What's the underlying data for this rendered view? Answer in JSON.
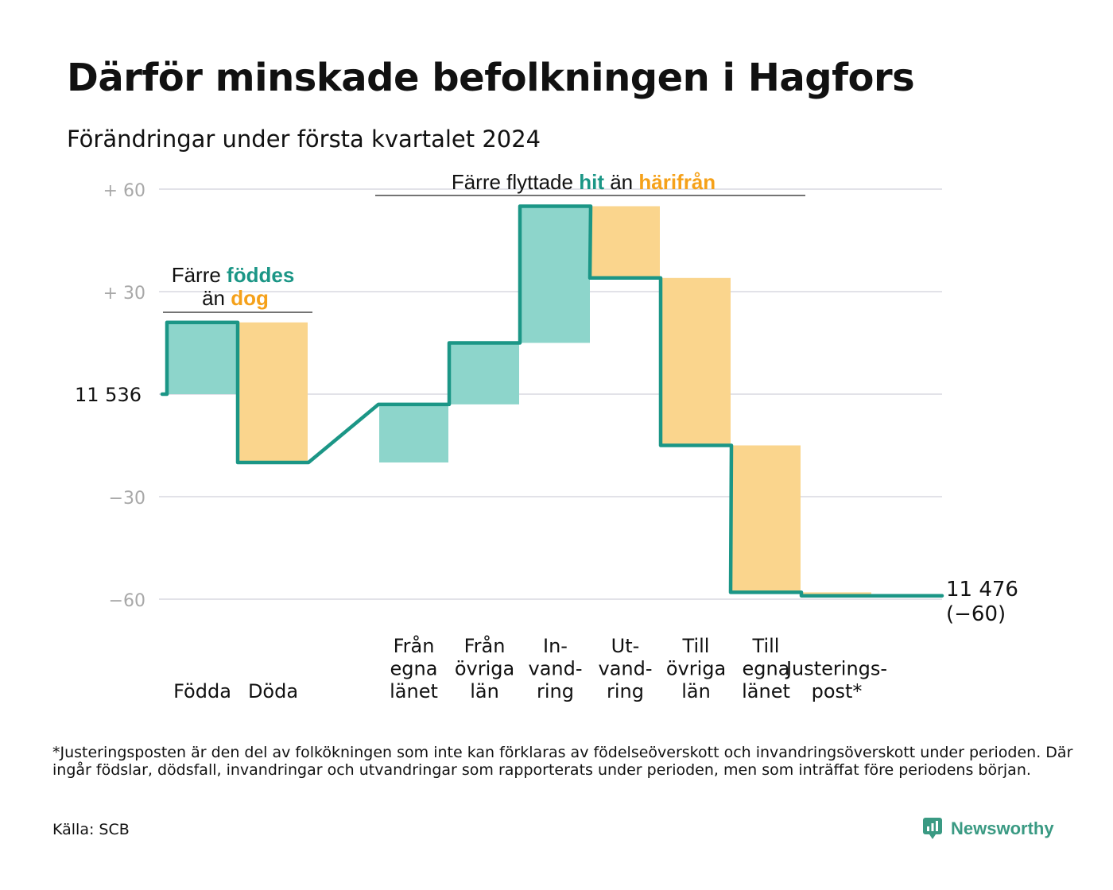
{
  "title": "Därför minskade befolkningen i Hagfors",
  "subtitle": "Förändringar under första kvartalet 2024",
  "colors": {
    "increase_fill": "#8dd5cb",
    "decrease_fill": "#fad58d",
    "line": "#1b9686",
    "teal_text": "#1b9686",
    "orange_text": "#f5a11a",
    "grid": "#e2e2e8",
    "tick_text": "#a8a8a8"
  },
  "chart_data": {
    "type": "bar",
    "subtype": "waterfall",
    "start_value": 11536,
    "end_value": 11476,
    "net_change": -60,
    "start_label": "11 536",
    "end_label": "11 476",
    "end_change_label": "(−60)",
    "ylim": [
      -60,
      60
    ],
    "yticks": [
      {
        "value": 60,
        "label": "+ 60"
      },
      {
        "value": 30,
        "label": "+ 30"
      },
      {
        "value": 0,
        "label": "11 536"
      },
      {
        "value": -30,
        "label": "−30"
      },
      {
        "value": -60,
        "label": "−60"
      }
    ],
    "grid": true,
    "categories": [
      {
        "label": [
          "Födda"
        ],
        "change": 21
      },
      {
        "label": [
          "Döda"
        ],
        "change": -41
      },
      {
        "label": [
          "Från",
          "egna",
          "länet"
        ],
        "change": 17
      },
      {
        "label": [
          "Från",
          "övriga",
          "län"
        ],
        "change": 18
      },
      {
        "label": [
          "In-",
          "vand-",
          "ring"
        ],
        "change": 40
      },
      {
        "label": [
          "Ut-",
          "vand-",
          "ring"
        ],
        "change": -21
      },
      {
        "label": [
          "Till",
          "övriga",
          "län"
        ],
        "change": -49
      },
      {
        "label": [
          "Till",
          "egna",
          "länet"
        ],
        "change": -43
      },
      {
        "label": [
          "Justerings-",
          "post*"
        ],
        "change": -1
      }
    ],
    "annotations": {
      "births": {
        "line1_text": "Färre",
        "line1_highlight": "föddes",
        "line2_text": "än",
        "line2_highlight": "dog"
      },
      "migration": {
        "text1": "Färre flyttade",
        "highlight1": "hit",
        "text2": "än",
        "highlight2": "härifrån"
      }
    }
  },
  "footnote": "*Justeringsposten är den del av folkökningen som inte kan förklaras av födelseöverskott och invandringsöverskott under perioden. Där ingår födslar, dödsfall, invandringar och utvandringar som rapporterats under perioden, men som inträffat före periodens början.",
  "source": "Källa: SCB",
  "logo_text": "Newsworthy"
}
